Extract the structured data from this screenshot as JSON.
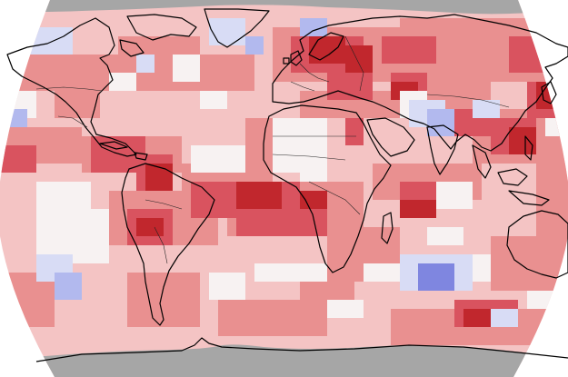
{
  "map": {
    "type": "global-temperature-anomaly-grid",
    "projection": "robinson",
    "text_labels": [],
    "colors": {
      "no_data": "#a6a6a6",
      "neutral": "#f7f2f2",
      "warm_1": "#f4c4c4",
      "warm_2": "#e99090",
      "warm_3": "#d9535f",
      "warm_4": "#c1272d",
      "cool_1": "#d8dcf5",
      "cool_2": "#b2b9ee",
      "cool_3": "#7f86e0",
      "coastline": "#000000",
      "border": "#222222"
    }
  }
}
